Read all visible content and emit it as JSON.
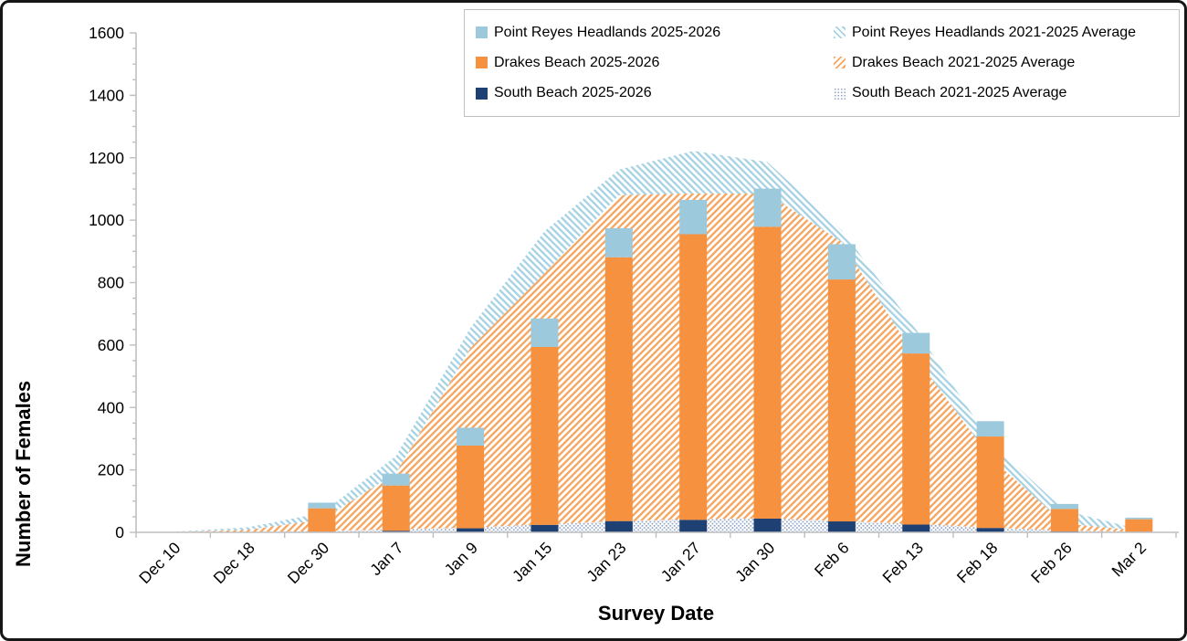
{
  "chart_data": {
    "type": "bar",
    "subtype": "stacked bars (2025-2026 season) drawn over stacked hatched areas (2021-2025 averages)",
    "title": "",
    "xlabel": "Survey Date",
    "ylabel": "Number of Females",
    "ylim": [
      0,
      1600
    ],
    "y_ticks": [
      0,
      200,
      400,
      600,
      800,
      1000,
      1200,
      1400,
      1600
    ],
    "y_minor_tick_step": 50,
    "grid": false,
    "legend_position": "top-right",
    "categories": [
      "Dec 10",
      "Dec 18",
      "Dec 30",
      "Jan 7",
      "Jan 9",
      "Jan 15",
      "Jan 23",
      "Jan 27",
      "Jan 30",
      "Feb 6",
      "Feb 13",
      "Feb 18",
      "Feb 26",
      "Mar 2"
    ],
    "bar_series": [
      {
        "name": "South Beach 2025-2026",
        "color": "#1E4073",
        "values": [
          0,
          0,
          2,
          5,
          13,
          24,
          36,
          40,
          44,
          35,
          25,
          14,
          3,
          2
        ]
      },
      {
        "name": "Drakes Beach 2025-2026",
        "color": "#F6913F",
        "values": [
          0,
          0,
          75,
          145,
          265,
          570,
          845,
          915,
          935,
          775,
          548,
          293,
          72,
          40
        ]
      },
      {
        "name": "Point Reyes Headlands 2025-2026",
        "color": "#9CC9DC",
        "values": [
          0,
          0,
          18,
          38,
          57,
          91,
          93,
          110,
          122,
          113,
          66,
          49,
          16,
          5
        ]
      }
    ],
    "area_series": [
      {
        "name": "South Beach 2021-2025 Average",
        "pattern": "dots",
        "color": "#8FA6C8",
        "values": [
          0,
          1,
          4,
          10,
          15,
          26,
          36,
          42,
          45,
          36,
          27,
          15,
          6,
          2
        ]
      },
      {
        "name": "Drakes Beach 2021-2025 Average",
        "pattern": "diag-up",
        "color": "#F6A55F",
        "values": [
          1,
          7,
          36,
          180,
          575,
          804,
          1044,
          1044,
          1040,
          894,
          533,
          225,
          22,
          4
        ]
      },
      {
        "name": "Point Reyes Headlands 2021-2025 Average",
        "pattern": "diag-down",
        "color": "#A6D2E3",
        "values": [
          1,
          8,
          22,
          55,
          65,
          135,
          82,
          136,
          101,
          38,
          90,
          50,
          42,
          4
        ]
      }
    ]
  },
  "legend": {
    "items": [
      {
        "label": "Point Reyes Headlands 2025-2026",
        "swatch": "solid",
        "color": "#9CC9DC"
      },
      {
        "label": "Point Reyes Headlands 2021-2025 Average",
        "swatch": "diag-down",
        "color": "#A6D2E3"
      },
      {
        "label": "Drakes Beach 2025-2026",
        "swatch": "solid",
        "color": "#F6913F"
      },
      {
        "label": "Drakes Beach 2021-2025 Average",
        "swatch": "diag-up",
        "color": "#F6A55F"
      },
      {
        "label": "South Beach 2025-2026",
        "swatch": "solid",
        "color": "#1E4073"
      },
      {
        "label": "South Beach 2021-2025 Average",
        "swatch": "dots",
        "color": "#8FA6C8"
      }
    ]
  },
  "axes": {
    "axis_line_color": "#BFBFBF",
    "tick_label_color": "#000000",
    "x_labels_rotation_deg": -45
  }
}
